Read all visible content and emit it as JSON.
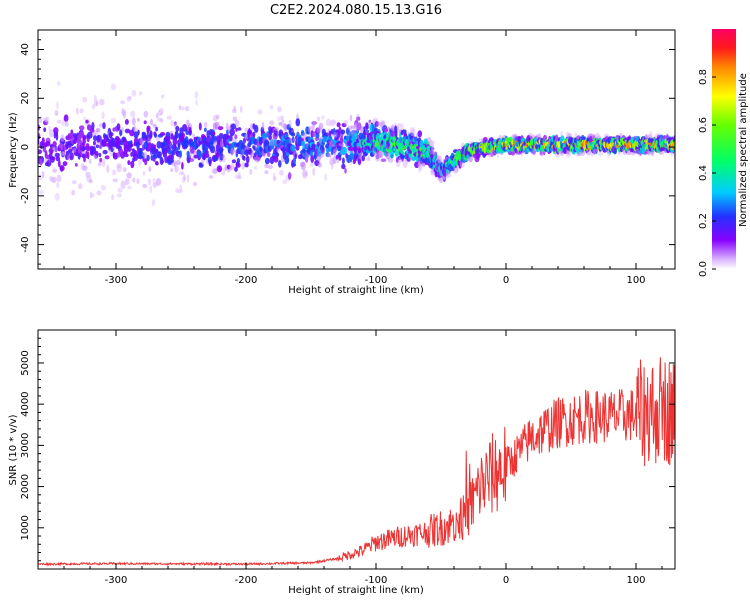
{
  "chart_data": [
    {
      "type": "heatmap",
      "title": "C2E2.2024.080.15.13.G16",
      "xlabel": "Height of straight line (km)",
      "ylabel": "Frequency (Hz)",
      "xlim": [
        -360,
        130
      ],
      "ylim": [
        -50,
        48
      ],
      "xticks": [
        -300,
        -200,
        -100,
        0,
        100
      ],
      "yticks": [
        -40,
        -20,
        0,
        20,
        40
      ],
      "xtick_labels": [
        "-300",
        "-200",
        "-100",
        "0",
        "100"
      ],
      "ytick_labels": [
        "-40",
        "-20",
        "0",
        "20",
        "40"
      ],
      "colorbar": {
        "label": "Normalized spectral amplitude",
        "range": [
          0.0,
          1.0
        ],
        "ticks": [
          0.0,
          0.2,
          0.4,
          0.6,
          0.8
        ],
        "tick_labels": [
          "0.0",
          "0.2",
          "0.4",
          "0.6",
          "0.8"
        ]
      },
      "description_points": [
        {
          "x": -360,
          "center_hz": 0,
          "spread_hz": 48,
          "amp": 0.15
        },
        {
          "x": -120,
          "center_hz": 1,
          "spread_hz": 15,
          "amp": 0.3
        },
        {
          "x": -100,
          "center_hz": 3,
          "spread_hz": 10,
          "amp": 0.5
        },
        {
          "x": -60,
          "center_hz": -2,
          "spread_hz": 8,
          "amp": 0.55
        },
        {
          "x": -50,
          "center_hz": -10,
          "spread_hz": 6,
          "amp": 0.35
        },
        {
          "x": -30,
          "center_hz": -2,
          "spread_hz": 4,
          "amp": 0.7
        },
        {
          "x": 0,
          "center_hz": 1,
          "spread_hz": 4,
          "amp": 0.8
        },
        {
          "x": 130,
          "center_hz": 1,
          "spread_hz": 4,
          "amp": 0.8
        }
      ]
    },
    {
      "type": "line",
      "xlabel": "Height of straight line (km)",
      "ylabel": "SNR (10 * v/v)",
      "xlim": [
        -360,
        130
      ],
      "ylim": [
        0,
        5800
      ],
      "xticks": [
        -300,
        -200,
        -100,
        0,
        100
      ],
      "yticks": [
        1000,
        2000,
        3000,
        4000,
        5000
      ],
      "xtick_labels": [
        "-300",
        "-200",
        "-100",
        "0",
        "100"
      ],
      "ytick_labels": [
        "1000",
        "2000",
        "3000",
        "4000",
        "5000"
      ],
      "series": [
        {
          "name": "SNR",
          "color": "#ee3333",
          "x": [
            -360,
            -300,
            -200,
            -150,
            -130,
            -110,
            -100,
            -80,
            -60,
            -40,
            -30,
            -20,
            -10,
            0,
            20,
            40,
            60,
            80,
            100,
            110,
            120,
            130
          ],
          "y": [
            120,
            130,
            120,
            150,
            250,
            450,
            650,
            800,
            900,
            1100,
            1300,
            2000,
            2300,
            2500,
            3200,
            3550,
            3700,
            3700,
            3750,
            3800,
            3900,
            3800
          ]
        }
      ]
    }
  ],
  "colors": {
    "line": "#ee3333",
    "background": "#ffffff",
    "axis": "#000000"
  }
}
